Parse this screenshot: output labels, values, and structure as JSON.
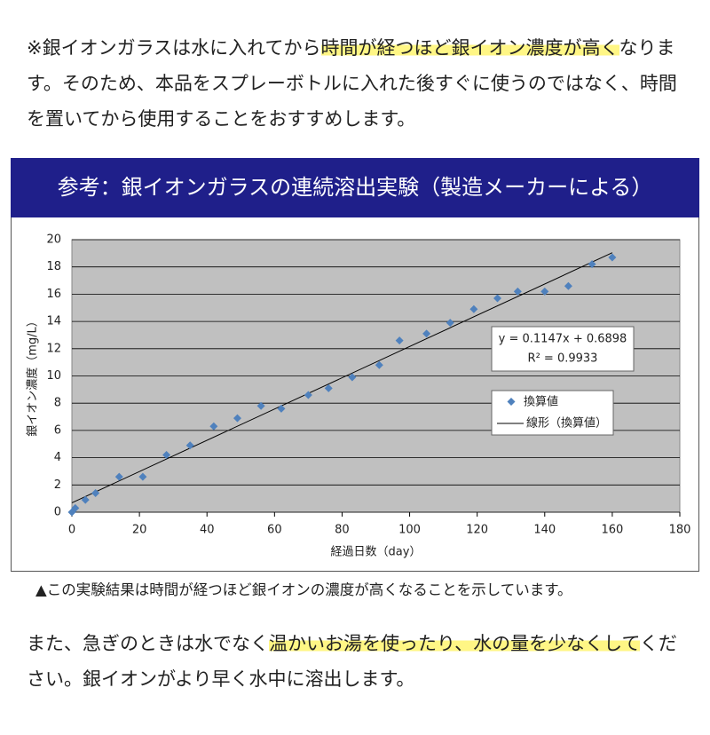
{
  "intro": {
    "before": "※銀イオンガラスは水に入れてから",
    "highlight": "時間が経つほど銀イオン濃度が高く",
    "after": "なります。そのため、本品をスプレーボトルに入れた後すぐに使うのではなく、時間を置いてから使用することをおすすめします。"
  },
  "banner": "参考：銀イオンガラスの連続溶出実験（製造メーカーによる）",
  "chart_data": {
    "type": "scatter",
    "x_label": "経過日数（day）",
    "y_label": "銀イオン濃度（mg/L）",
    "xlim": [
      0,
      180
    ],
    "xticks": [
      0,
      20,
      40,
      60,
      80,
      100,
      120,
      140,
      160,
      180
    ],
    "ylim": [
      0,
      20
    ],
    "yticks": [
      0,
      2,
      4,
      6,
      8,
      10,
      12,
      14,
      16,
      18,
      20
    ],
    "grid": true,
    "background": "#c0c0c0",
    "series": [
      {
        "name": "換算値",
        "color": "#4f81bd",
        "x": [
          0,
          1,
          4,
          7,
          14,
          21,
          28,
          35,
          42,
          49,
          56,
          62,
          70,
          76,
          83,
          91,
          97,
          105,
          112,
          119,
          126,
          132,
          140,
          147,
          154,
          160
        ],
        "values": [
          0,
          0.3,
          0.9,
          1.4,
          2.6,
          2.6,
          4.2,
          4.9,
          6.3,
          6.9,
          7.8,
          7.6,
          8.6,
          9.1,
          9.9,
          10.8,
          12.6,
          13.1,
          13.9,
          14.9,
          15.7,
          16.2,
          16.2,
          16.6,
          18.2,
          18.7
        ]
      }
    ],
    "trendline": {
      "name": "線形（換算値）",
      "color": "#000000",
      "slope": 0.1147,
      "intercept": 0.6898,
      "x_range": [
        0,
        160
      ],
      "equation": "y = 0.1147x + 0.6898",
      "r2": "R² = 0.9933"
    }
  },
  "caption": "▲この実験結果は時間が経つほど銀イオンの濃度が高くなることを示しています。",
  "outro": {
    "before": "また、急ぎのときは水でなく",
    "highlight": "温かいお湯を使ったり、水の量を少なくして",
    "after": "ください。銀イオンがより早く水中に溶出します。"
  }
}
